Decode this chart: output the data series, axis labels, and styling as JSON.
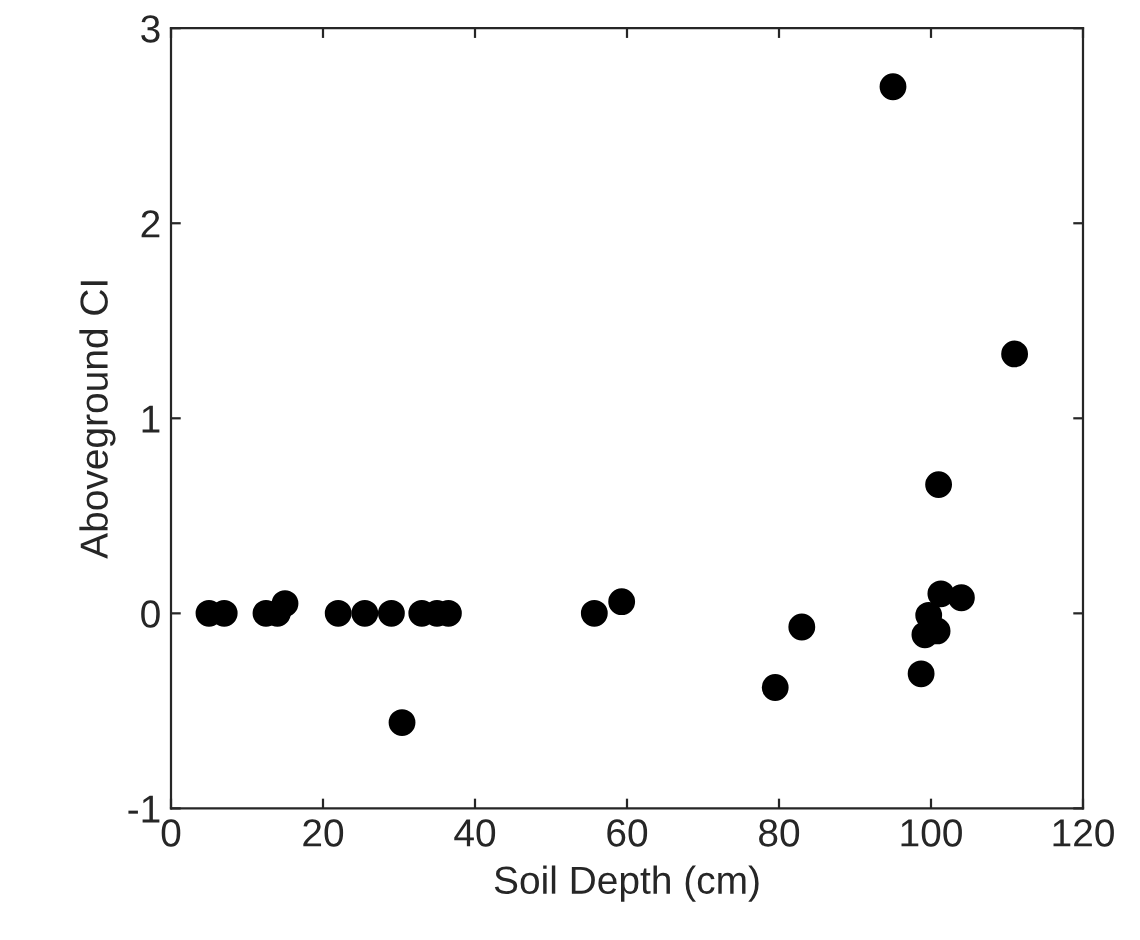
{
  "chart_data": {
    "type": "scatter",
    "xlabel": "Soil Depth (cm)",
    "ylabel": "Aboveground CI",
    "x": [
      5,
      7,
      12.5,
      14,
      15,
      22,
      25.5,
      29,
      30.4,
      33,
      35,
      36.5,
      55.7,
      59.3,
      79.5,
      83,
      95,
      98.7,
      99.2,
      99.7,
      100.8,
      101,
      101.3,
      104,
      111
    ],
    "values": [
      0,
      0,
      0,
      0,
      0.05,
      0,
      0,
      0,
      -0.56,
      0,
      0,
      0,
      0,
      0.06,
      -0.38,
      -0.07,
      2.7,
      -0.31,
      -0.11,
      -0.01,
      -0.09,
      0.66,
      0.1,
      0.08,
      1.33
    ],
    "color": "#000000",
    "marker": "circle",
    "xlim": [
      0,
      120
    ],
    "xticks": [
      0,
      20,
      40,
      60,
      80,
      100,
      120
    ],
    "ylim": [
      -1,
      3
    ],
    "yticks": [
      -1,
      0,
      1,
      2,
      3
    ],
    "grid": false
  }
}
